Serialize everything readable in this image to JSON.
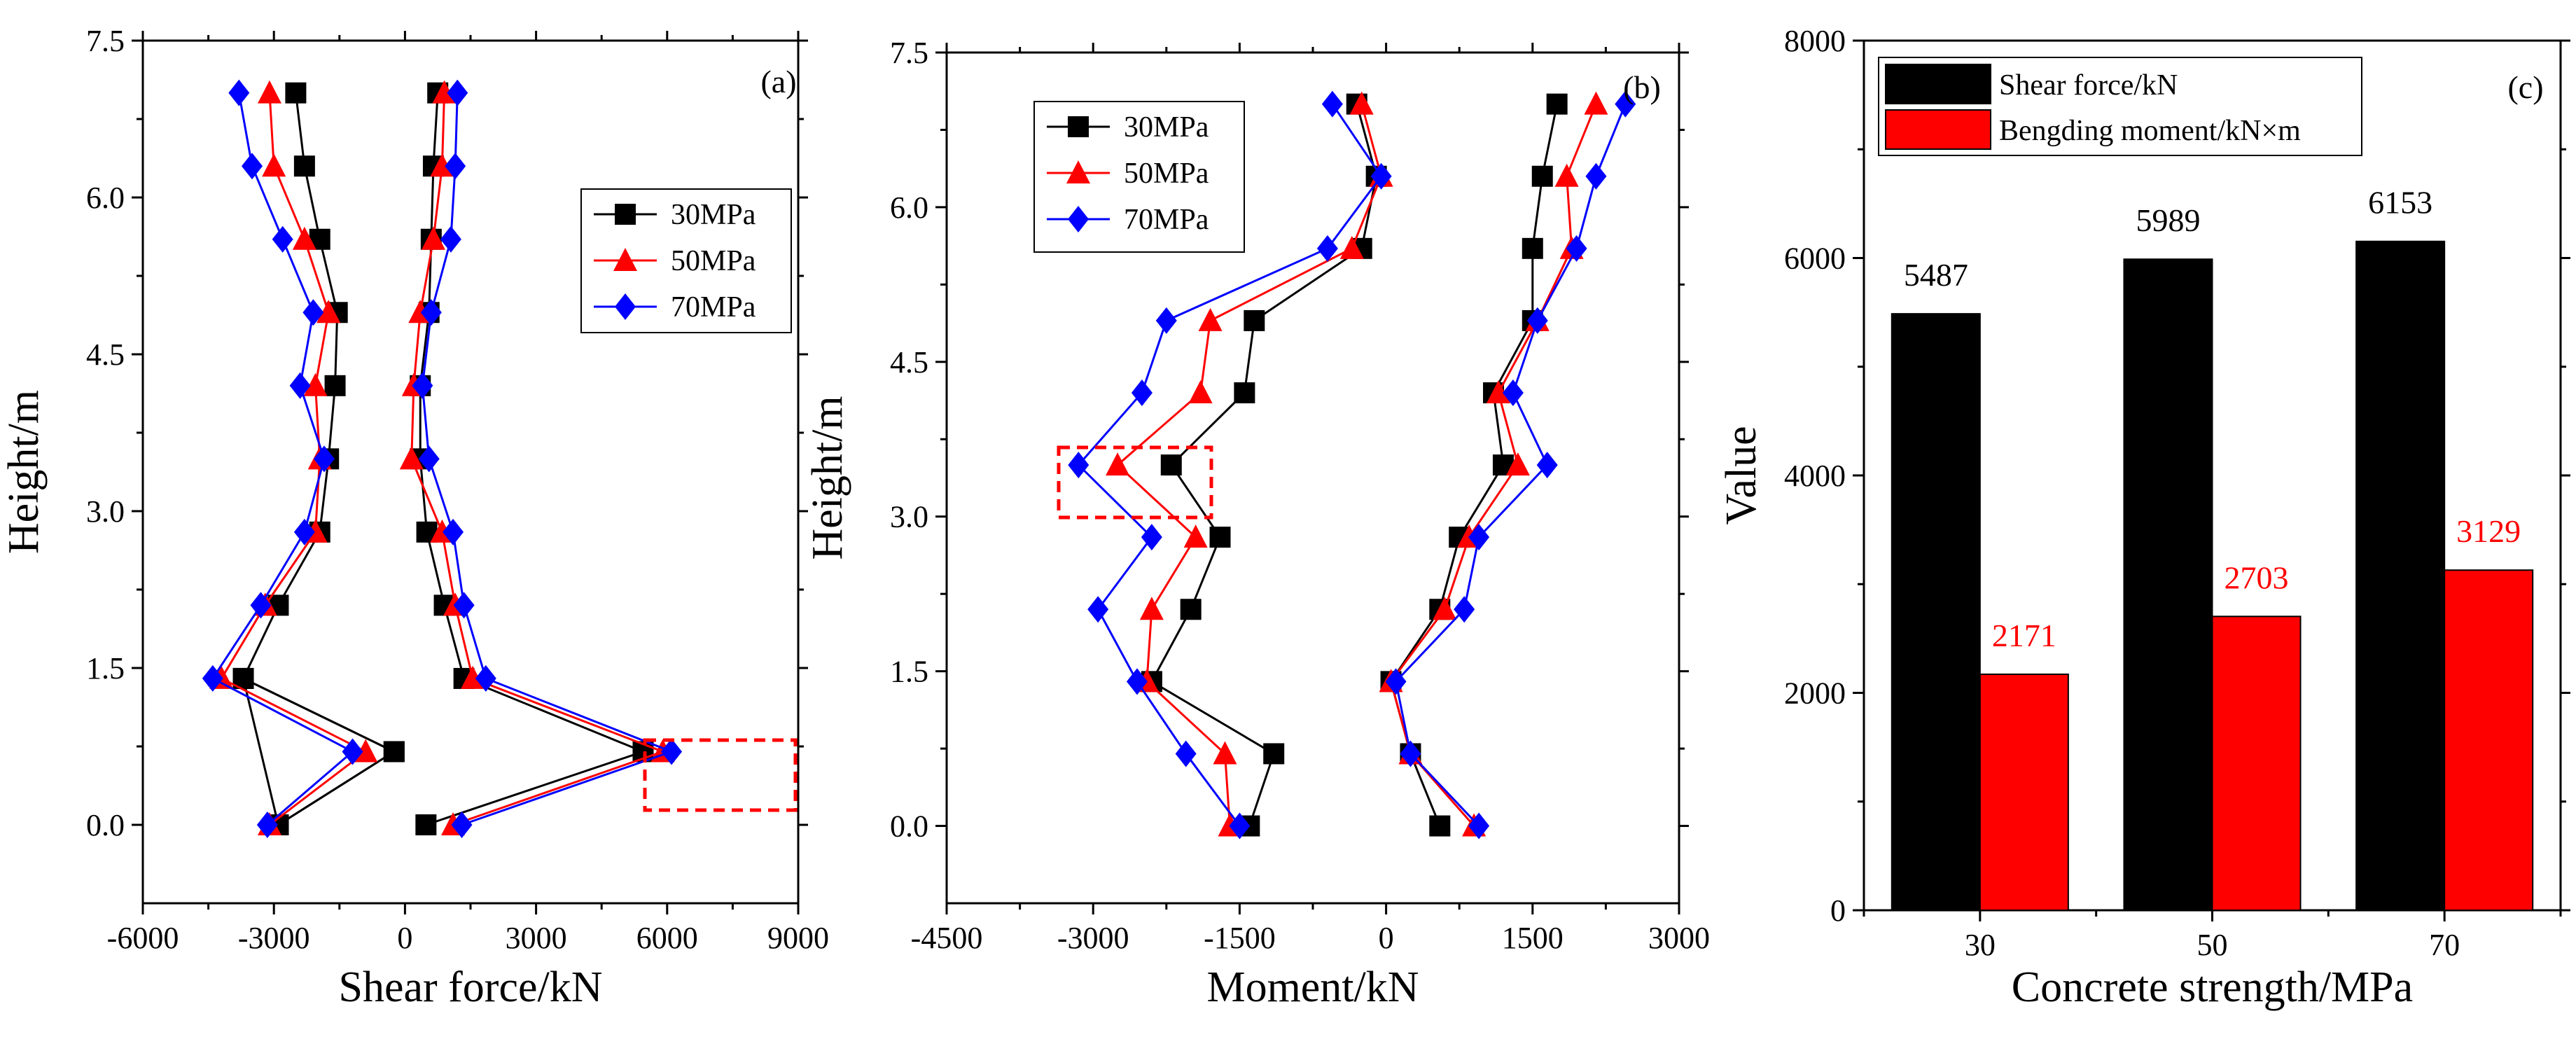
{
  "chart_data": [
    {
      "type": "line",
      "panel_label": "(a)",
      "xlabel": "Shear force/kN",
      "ylabel": "Height/m",
      "xlim": [
        -6000,
        9000
      ],
      "ylim": [
        -0.75,
        7.5
      ],
      "x_ticks": [
        -6000,
        -3000,
        0,
        3000,
        6000,
        9000
      ],
      "y_ticks": [
        0.0,
        1.5,
        3.0,
        4.5,
        6.0,
        7.5
      ],
      "x_tick_labels": [
        "-6000",
        "-3000",
        "0",
        "3000",
        "6000",
        "9000"
      ],
      "y_tick_labels": [
        "0.0",
        "1.5",
        "3.0",
        "4.5",
        "6.0",
        "7.5"
      ],
      "legend_position": "upper-right",
      "series": [
        {
          "name": "30MPa",
          "color": "#000000",
          "marker": "square",
          "segments": [
            [
              [
                -2900,
                0
              ],
              [
                -3700,
                1.4
              ],
              [
                -250,
                0.7
              ],
              [
                -2900,
                0
              ],
              [
                -2900,
                0
              ]
            ],
            [
              [
                -2900,
                0
              ],
              [
                -250,
                0.7
              ],
              [
                -3700,
                1.4
              ],
              [
                -2900,
                2.1
              ],
              [
                -1950,
                2.8
              ],
              [
                -1750,
                3.5
              ],
              [
                -1600,
                4.2
              ],
              [
                -1550,
                4.9
              ],
              [
                -1950,
                5.6
              ],
              [
                -2300,
                6.3
              ],
              [
                -2500,
                7.0
              ]
            ],
            [
              [
                480,
                0
              ],
              [
                5450,
                0.7
              ],
              [
                1350,
                1.4
              ],
              [
                900,
                2.1
              ],
              [
                500,
                2.8
              ],
              [
                350,
                3.5
              ],
              [
                350,
                4.2
              ],
              [
                550,
                4.9
              ],
              [
                600,
                5.6
              ],
              [
                650,
                6.3
              ],
              [
                750,
                7.0
              ]
            ]
          ]
        },
        {
          "name": "50MPa",
          "color": "#ff0000",
          "marker": "triangle",
          "segments": [
            [
              [
                -3100,
                0
              ],
              [
                -900,
                0.7
              ],
              [
                -4200,
                1.4
              ],
              [
                -3200,
                2.1
              ],
              [
                -2050,
                2.8
              ],
              [
                -1950,
                3.5
              ],
              [
                -2050,
                4.2
              ],
              [
                -1750,
                4.9
              ],
              [
                -2300,
                5.6
              ],
              [
                -3000,
                6.3
              ],
              [
                -3100,
                7.0
              ]
            ],
            [
              [
                1100,
                0
              ],
              [
                5900,
                0.7
              ],
              [
                1550,
                1.4
              ],
              [
                1150,
                2.1
              ],
              [
                850,
                2.8
              ],
              [
                150,
                3.5
              ],
              [
                200,
                4.2
              ],
              [
                350,
                4.9
              ],
              [
                650,
                5.6
              ],
              [
                850,
                6.3
              ],
              [
                900,
                7.0
              ]
            ]
          ]
        },
        {
          "name": "70MPa",
          "color": "#0000ff",
          "marker": "diamond",
          "segments": [
            [
              [
                -3150,
                0
              ],
              [
                -1200,
                0.7
              ],
              [
                -4400,
                1.4
              ],
              [
                -3300,
                2.1
              ],
              [
                -2300,
                2.8
              ],
              [
                -1850,
                3.5
              ],
              [
                -2400,
                4.2
              ],
              [
                -2100,
                4.9
              ],
              [
                -2800,
                5.6
              ],
              [
                -3500,
                6.3
              ],
              [
                -3800,
                7.0
              ]
            ],
            [
              [
                1300,
                0
              ],
              [
                6100,
                0.7
              ],
              [
                1850,
                1.4
              ],
              [
                1350,
                2.1
              ],
              [
                1100,
                2.8
              ],
              [
                550,
                3.5
              ],
              [
                400,
                4.2
              ],
              [
                600,
                4.9
              ],
              [
                1050,
                5.6
              ],
              [
                1150,
                6.3
              ],
              [
                1200,
                7.0
              ]
            ]
          ]
        }
      ]
    },
    {
      "type": "line",
      "panel_label": "(b)",
      "xlabel": "Moment/kN",
      "ylabel": "Height/m",
      "xlim": [
        -4500,
        3000
      ],
      "ylim": [
        -0.75,
        7.5
      ],
      "x_ticks": [
        -4500,
        -3000,
        -1500,
        0,
        1500,
        3000
      ],
      "y_ticks": [
        0.0,
        1.5,
        3.0,
        4.5,
        6.0,
        7.5
      ],
      "x_tick_labels": [
        "-4500",
        "-3000",
        "-1500",
        "0",
        "1500",
        "3000"
      ],
      "y_tick_labels": [
        "0.0",
        "1.5",
        "3.0",
        "4.5",
        "6.0",
        "7.5"
      ],
      "legend_position": "upper-left",
      "series": [
        {
          "name": "30MPa",
          "color": "#000000",
          "marker": "square",
          "segments": [
            [
              [
                -1400,
                0
              ],
              [
                -1150,
                0.7
              ],
              [
                -2400,
                1.4
              ],
              [
                -2000,
                2.1
              ],
              [
                -1700,
                2.8
              ],
              [
                -2200,
                3.5
              ],
              [
                -1450,
                4.2
              ],
              [
                -1350,
                4.9
              ],
              [
                -250,
                5.6
              ],
              [
                -100,
                6.3
              ],
              [
                -300,
                7.0
              ]
            ],
            [
              [
                550,
                0
              ],
              [
                250,
                0.7
              ],
              [
                50,
                1.4
              ],
              [
                550,
                2.1
              ],
              [
                750,
                2.8
              ],
              [
                1200,
                3.5
              ],
              [
                1100,
                4.2
              ],
              [
                1500,
                4.9
              ],
              [
                1500,
                5.6
              ],
              [
                1600,
                6.3
              ],
              [
                1750,
                7.0
              ]
            ]
          ]
        },
        {
          "name": "50MPa",
          "color": "#ff0000",
          "marker": "triangle",
          "segments": [
            [
              [
                -1600,
                0
              ],
              [
                -1650,
                0.7
              ],
              [
                -2450,
                1.4
              ],
              [
                -2400,
                2.1
              ],
              [
                -1950,
                2.8
              ],
              [
                -2750,
                3.5
              ],
              [
                -1900,
                4.2
              ],
              [
                -1800,
                4.9
              ],
              [
                -350,
                5.6
              ],
              [
                -50,
                6.3
              ],
              [
                -250,
                7.0
              ]
            ],
            [
              [
                900,
                0
              ],
              [
                250,
                0.7
              ],
              [
                50,
                1.4
              ],
              [
                600,
                2.1
              ],
              [
                850,
                2.8
              ],
              [
                1350,
                3.5
              ],
              [
                1150,
                4.2
              ],
              [
                1550,
                4.9
              ],
              [
                1900,
                5.6
              ],
              [
                1850,
                6.3
              ],
              [
                2150,
                7.0
              ]
            ]
          ]
        },
        {
          "name": "70MPa",
          "color": "#0000ff",
          "marker": "diamond",
          "segments": [
            [
              [
                -1500,
                0
              ],
              [
                -2050,
                0.7
              ],
              [
                -2550,
                1.4
              ],
              [
                -2950,
                2.1
              ],
              [
                -2400,
                2.8
              ],
              [
                -3150,
                3.5
              ],
              [
                -2500,
                4.2
              ],
              [
                -2250,
                4.9
              ],
              [
                -600,
                5.6
              ],
              [
                -50,
                6.3
              ],
              [
                -550,
                7.0
              ]
            ],
            [
              [
                950,
                0
              ],
              [
                250,
                0.7
              ],
              [
                100,
                1.4
              ],
              [
                800,
                2.1
              ],
              [
                950,
                2.8
              ],
              [
                1650,
                3.5
              ],
              [
                1300,
                4.2
              ],
              [
                1550,
                4.9
              ],
              [
                1950,
                5.6
              ],
              [
                2150,
                6.3
              ],
              [
                2450,
                7.0
              ]
            ]
          ]
        }
      ]
    },
    {
      "type": "bar",
      "panel_label": "(c)",
      "xlabel": "Concrete strength/MPa",
      "ylabel": "Value",
      "categories": [
        "30",
        "50",
        "70"
      ],
      "ylim": [
        0,
        8000
      ],
      "y_ticks": [
        0,
        2000,
        4000,
        6000,
        8000
      ],
      "y_tick_labels": [
        "0",
        "2000",
        "4000",
        "6000",
        "8000"
      ],
      "legend_position": "upper-left",
      "series": [
        {
          "name": "Shear force/kN",
          "color": "#000000",
          "values": [
            5487,
            5989,
            6153
          ],
          "labels": [
            "5487",
            "5989",
            "6153"
          ],
          "label_color": "#000000"
        },
        {
          "name": "Bengding moment/kN×m",
          "color": "#ff0000",
          "values": [
            2171,
            2703,
            3129
          ],
          "labels": [
            "2171",
            "2703",
            "3129"
          ],
          "label_color": "#ff0000"
        }
      ]
    }
  ]
}
